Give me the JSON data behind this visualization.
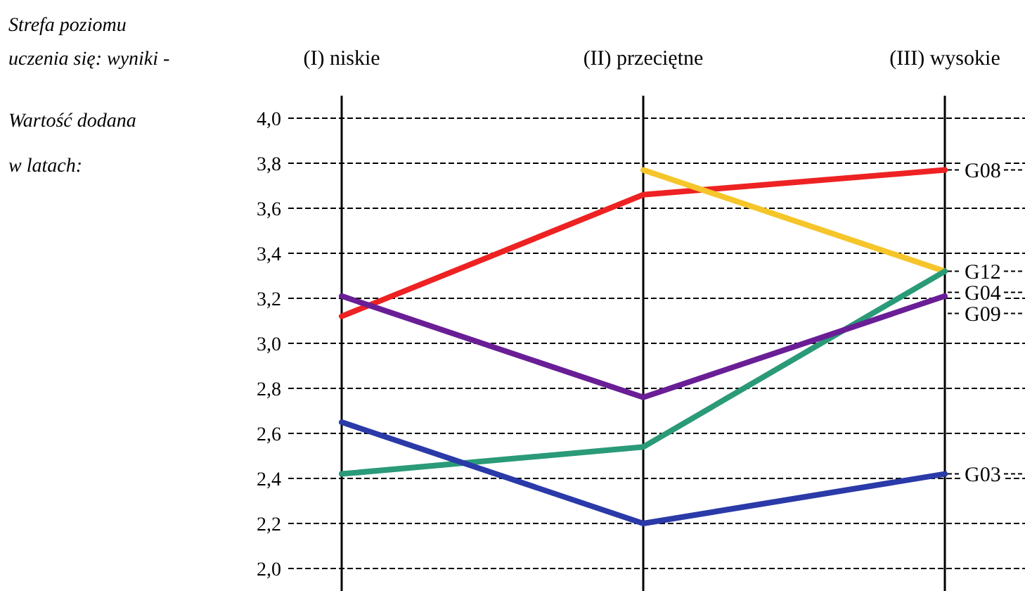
{
  "chart_data": {
    "type": "line",
    "annotations": [
      "Strefa poziomu uczenia się: wyniki -",
      "Wartość dodana w latach:"
    ],
    "categories": [
      "(I) niskie",
      "(II) przeciętne",
      "(III) wysokie"
    ],
    "ylim": [
      2.0,
      4.0
    ],
    "yticks": [
      {
        "value": 2.0,
        "label": "2,0"
      },
      {
        "value": 2.2,
        "label": "2,2"
      },
      {
        "value": 2.4,
        "label": "2,4"
      },
      {
        "value": 2.6,
        "label": "2,6"
      },
      {
        "value": 2.8,
        "label": "2,8"
      },
      {
        "value": 3.0,
        "label": "3,0"
      },
      {
        "value": 3.2,
        "label": "3,2"
      },
      {
        "value": 3.4,
        "label": "3,4"
      },
      {
        "value": 3.6,
        "label": "3,6"
      },
      {
        "value": 3.8,
        "label": "3,8"
      },
      {
        "value": 4.0,
        "label": "4,0"
      }
    ],
    "grid": true,
    "marker": "none",
    "line_style": "solid",
    "series": [
      {
        "name": "G08",
        "color": "#ee2222",
        "values": [
          3.12,
          3.66,
          3.77
        ]
      },
      {
        "name": "G12",
        "color": "#f5c52a",
        "values": [
          null,
          3.77,
          3.32
        ]
      },
      {
        "name": "G04",
        "color": "#2a9a78",
        "values": [
          2.42,
          2.54,
          3.32
        ]
      },
      {
        "name": "G09",
        "color": "#6a1e96",
        "values": [
          3.21,
          2.76,
          3.21
        ]
      },
      {
        "name": "G03",
        "color": "#2a3aa8",
        "values": [
          2.65,
          2.2,
          2.42
        ]
      }
    ]
  }
}
